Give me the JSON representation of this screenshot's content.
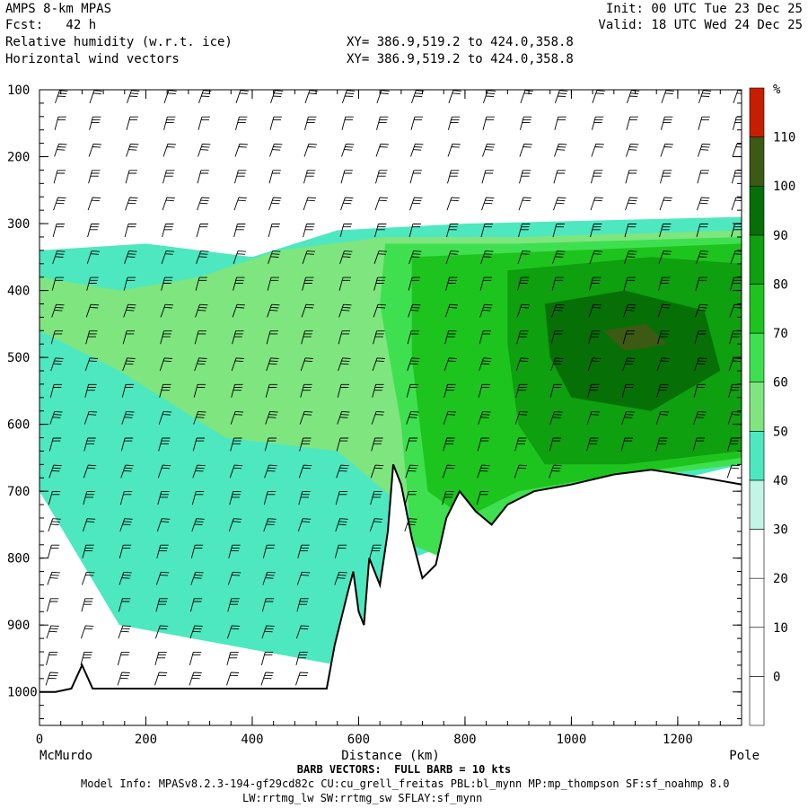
{
  "header": {
    "model": "AMPS 8-km MPAS",
    "fcst": "Fcst:   42 h",
    "field1": "Relative humidity (w.r.t. ice)",
    "field2": "Horizontal wind vectors",
    "xy1": "XY= 386.9,519.2 to 424.0,358.8",
    "xy2": "XY= 386.9,519.2 to 424.0,358.8",
    "init": "Init: 00 UTC Tue 23 Dec 25",
    "valid": "Valid: 18 UTC Wed 24 Dec 25"
  },
  "footer": {
    "barb_note": "BARB VECTORS:  FULL BARB = 10 kts",
    "model_info": "Model Info: MPASv8.2.3-194-gf29cd82c CU:cu_grell_freitas PBL:bl_mynn MP:mp_thompson SF:sf_noahmp 8.0",
    "physics": "LW:rrtmg_lw SW:rrtmg_sw SFLAY:sf_mynn"
  },
  "chart_data": {
    "type": "heatmap",
    "title": "Relative humidity (w.r.t. ice)",
    "overlay": "Horizontal wind vectors",
    "xlabel": "Distance (km)",
    "x_start_label": "McMurdo",
    "x_end_label": "Pole",
    "xlim": [
      0,
      1320
    ],
    "x_ticks": [
      0,
      200,
      400,
      600,
      800,
      1000,
      1200
    ],
    "ylim": [
      100,
      1050
    ],
    "y_reversed": true,
    "y_ticks": [
      100,
      200,
      300,
      400,
      500,
      600,
      700,
      800,
      900,
      1000
    ],
    "colorbar": {
      "unit": "%",
      "levels": [
        0,
        10,
        20,
        30,
        40,
        50,
        60,
        70,
        80,
        90,
        100,
        110
      ],
      "colors": [
        "#ffffff",
        "#ffffff",
        "#ffffff",
        "#ffffff",
        "#c2f5e6",
        "#4de8bf",
        "#7fe57f",
        "#3fe04f",
        "#1ec41e",
        "#0ea00e",
        "#067006",
        "#3c5a14",
        "#c81e00"
      ]
    },
    "terrain": [
      [
        0,
        1000
      ],
      [
        30,
        1000
      ],
      [
        60,
        995
      ],
      [
        80,
        960
      ],
      [
        100,
        995
      ],
      [
        300,
        995
      ],
      [
        540,
        995
      ],
      [
        555,
        930
      ],
      [
        580,
        850
      ],
      [
        590,
        820
      ],
      [
        600,
        880
      ],
      [
        610,
        900
      ],
      [
        620,
        800
      ],
      [
        640,
        840
      ],
      [
        655,
        760
      ],
      [
        665,
        660
      ],
      [
        680,
        690
      ],
      [
        700,
        770
      ],
      [
        720,
        830
      ],
      [
        745,
        810
      ],
      [
        765,
        740
      ],
      [
        790,
        700
      ],
      [
        820,
        730
      ],
      [
        850,
        750
      ],
      [
        880,
        720
      ],
      [
        930,
        700
      ],
      [
        1000,
        690
      ],
      [
        1080,
        675
      ],
      [
        1150,
        668
      ],
      [
        1250,
        680
      ],
      [
        1320,
        690
      ]
    ],
    "rh_regions": [
      {
        "value": 40,
        "points": [
          [
            0,
            340
          ],
          [
            200,
            330
          ],
          [
            400,
            350
          ],
          [
            560,
            310
          ],
          [
            800,
            300
          ],
          [
            1320,
            290
          ],
          [
            1320,
            660
          ],
          [
            900,
            740
          ],
          [
            700,
            800
          ],
          [
            560,
            960
          ],
          [
            150,
            900
          ],
          [
            0,
            700
          ]
        ]
      },
      {
        "value": 50,
        "points": [
          [
            0,
            380
          ],
          [
            150,
            400
          ],
          [
            300,
            380
          ],
          [
            450,
            340
          ],
          [
            650,
            320
          ],
          [
            900,
            320
          ],
          [
            1320,
            310
          ],
          [
            1320,
            650
          ],
          [
            1000,
            690
          ],
          [
            800,
            780
          ],
          [
            650,
            700
          ],
          [
            560,
            640
          ],
          [
            350,
            620
          ],
          [
            150,
            520
          ],
          [
            0,
            460
          ]
        ]
      },
      {
        "value": 60,
        "points": [
          [
            650,
            330
          ],
          [
            900,
            330
          ],
          [
            1320,
            320
          ],
          [
            1320,
            660
          ],
          [
            1000,
            690
          ],
          [
            850,
            750
          ],
          [
            760,
            800
          ],
          [
            700,
            780
          ],
          [
            680,
            600
          ],
          [
            640,
            420
          ]
        ]
      },
      {
        "value": 70,
        "points": [
          [
            700,
            350
          ],
          [
            1000,
            340
          ],
          [
            1320,
            330
          ],
          [
            1320,
            650
          ],
          [
            1050,
            680
          ],
          [
            900,
            700
          ],
          [
            800,
            740
          ],
          [
            730,
            700
          ],
          [
            700,
            500
          ]
        ]
      },
      {
        "value": 80,
        "points": [
          [
            880,
            370
          ],
          [
            1150,
            350
          ],
          [
            1320,
            360
          ],
          [
            1320,
            640
          ],
          [
            1100,
            660
          ],
          [
            950,
            660
          ],
          [
            900,
            600
          ],
          [
            880,
            480
          ]
        ]
      },
      {
        "value": 90,
        "points": [
          [
            950,
            420
          ],
          [
            1100,
            400
          ],
          [
            1250,
            430
          ],
          [
            1280,
            520
          ],
          [
            1150,
            580
          ],
          [
            1000,
            560
          ],
          [
            960,
            500
          ]
        ]
      },
      {
        "value": 100,
        "points": [
          [
            1060,
            460
          ],
          [
            1140,
            450
          ],
          [
            1180,
            480
          ],
          [
            1100,
            490
          ]
        ]
      },
      {
        "value": 110,
        "points": [
          [
            1140,
            680
          ],
          [
            1200,
            680
          ],
          [
            1200,
            690
          ],
          [
            1140,
            690
          ]
        ]
      }
    ],
    "barb_columns_km": [
      30,
      95,
      165,
      235,
      300,
      370,
      435,
      500,
      570,
      635,
      700,
      770,
      835,
      905,
      970,
      1040,
      1105,
      1170,
      1240,
      1305
    ],
    "barb_levels_hpa": [
      120,
      160,
      200,
      240,
      280,
      320,
      360,
      400,
      440,
      480,
      520,
      560,
      600,
      640,
      680,
      720,
      760,
      800,
      840,
      880,
      920,
      960,
      990
    ]
  }
}
